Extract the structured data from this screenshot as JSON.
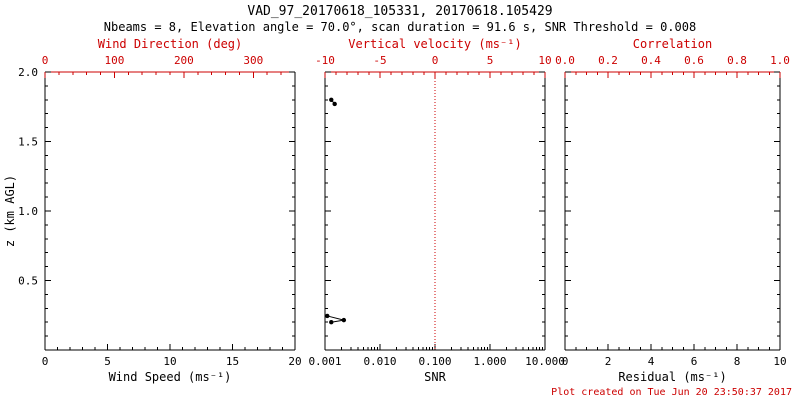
{
  "header": {
    "title": "VAD_97_20170618_105331, 20170618.105429",
    "subtitle": "Nbeams = 8, Elevation angle = 70.0°, scan duration = 91.6 s, SNR Threshold = 0.008"
  },
  "footer": {
    "created": "Plot created on Tue Jun 20 23:50:37 2017"
  },
  "colors": {
    "frame": "#000000",
    "secondary_axis": "#cc0000",
    "marker": "#000000",
    "ref_line": "#cc0000",
    "background": "#ffffff"
  },
  "chart_data": {
    "type": "scatter",
    "layout": "three-panel vertical profile, shared height axis",
    "grid": false,
    "y_axis": {
      "label": "z (km AGL)",
      "lim": [
        0.0,
        2.0
      ],
      "tick_values": [
        0.0,
        0.5,
        1.0,
        1.5,
        2.0
      ],
      "tick_labels": [
        "",
        "0.5",
        "1.0",
        "1.5",
        "2.0"
      ]
    },
    "panels": [
      {
        "name": "wind-speed-panel",
        "bottom_axis": {
          "label": "Wind Speed (ms⁻¹)",
          "scale": "linear",
          "lim": [
            0,
            20
          ],
          "tick_values": [
            0,
            5,
            10,
            15,
            20
          ],
          "tick_labels": [
            "0",
            "5",
            "10",
            "15",
            "20"
          ]
        },
        "top_axis": {
          "label": "Wind Direction (deg)",
          "scale": "linear",
          "lim": [
            0,
            360
          ],
          "tick_values": [
            0,
            100,
            200,
            300
          ],
          "tick_labels": [
            "0",
            "100",
            "200",
            "300"
          ]
        },
        "series": []
      },
      {
        "name": "snr-panel",
        "bottom_axis": {
          "label": "SNR",
          "scale": "log",
          "lim": [
            0.001,
            10.0
          ],
          "tick_values": [
            0.001,
            0.01,
            0.1,
            1.0,
            10.0
          ],
          "tick_labels": [
            "0.001",
            "0.010",
            "0.100",
            "1.000",
            "10.000"
          ]
        },
        "top_axis": {
          "label": "Vertical velocity (ms⁻¹)",
          "scale": "linear",
          "lim": [
            -10,
            10
          ],
          "tick_values": [
            -10,
            -5,
            0,
            5,
            10
          ],
          "tick_labels": [
            "-10",
            "-5",
            "0",
            "5",
            "10"
          ]
        },
        "ref_line": {
          "x": 0.1,
          "style": "dotted",
          "color": "#cc0000",
          "meaning": "vertical velocity = 0 reference"
        },
        "series": [
          {
            "name": "snr-profile-upper",
            "points": [
              [
                0.0013,
                1.8
              ],
              [
                0.0015,
                1.77
              ]
            ]
          },
          {
            "name": "snr-profile-lower",
            "points": [
              [
                0.0011,
                0.245
              ],
              [
                0.0022,
                0.215
              ],
              [
                0.0013,
                0.2
              ]
            ]
          }
        ]
      },
      {
        "name": "residual-panel",
        "bottom_axis": {
          "label": "Residual (ms⁻¹)",
          "scale": "linear",
          "lim": [
            0,
            10
          ],
          "tick_values": [
            0,
            2,
            4,
            6,
            8,
            10
          ],
          "tick_labels": [
            "0",
            "2",
            "4",
            "6",
            "8",
            "10"
          ]
        },
        "top_axis": {
          "label": "Correlation",
          "scale": "linear",
          "lim": [
            0.0,
            1.0
          ],
          "tick_values": [
            0.0,
            0.2,
            0.4,
            0.6,
            0.8,
            1.0
          ],
          "tick_labels": [
            "0.0",
            "0.2",
            "0.4",
            "0.6",
            "0.8",
            "1.0"
          ]
        },
        "series": []
      }
    ]
  }
}
